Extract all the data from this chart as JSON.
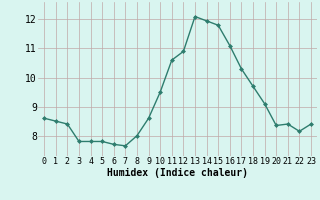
{
  "x": [
    0,
    1,
    2,
    3,
    4,
    5,
    6,
    7,
    8,
    9,
    10,
    11,
    12,
    13,
    14,
    15,
    16,
    17,
    18,
    19,
    20,
    21,
    22,
    23
  ],
  "y": [
    8.6,
    8.5,
    8.4,
    7.8,
    7.8,
    7.8,
    7.7,
    7.65,
    8.0,
    8.6,
    9.5,
    10.6,
    10.9,
    12.1,
    11.95,
    11.8,
    11.1,
    10.3,
    9.7,
    9.1,
    8.35,
    8.4,
    8.15,
    8.4
  ],
  "line_color": "#2e7d6e",
  "marker": "D",
  "marker_size": 2.0,
  "bg_color": "#d9f5f0",
  "grid_color": "#c0a8a8",
  "xlabel": "Humidex (Indice chaleur)",
  "ylim": [
    7.3,
    12.6
  ],
  "xlim": [
    -0.5,
    23.5
  ],
  "yticks": [
    8,
    9,
    10,
    11,
    12
  ],
  "xticks": [
    0,
    1,
    2,
    3,
    4,
    5,
    6,
    7,
    8,
    9,
    10,
    11,
    12,
    13,
    14,
    15,
    16,
    17,
    18,
    19,
    20,
    21,
    22,
    23
  ],
  "xtick_labels": [
    "0",
    "1",
    "2",
    "3",
    "4",
    "5",
    "6",
    "7",
    "8",
    "9",
    "10",
    "11",
    "12",
    "13",
    "14",
    "15",
    "16",
    "17",
    "18",
    "19",
    "20",
    "21",
    "22",
    "23"
  ],
  "tick_fontsize": 6.0,
  "xlabel_fontsize": 7.0,
  "ytick_fontsize": 7.0
}
